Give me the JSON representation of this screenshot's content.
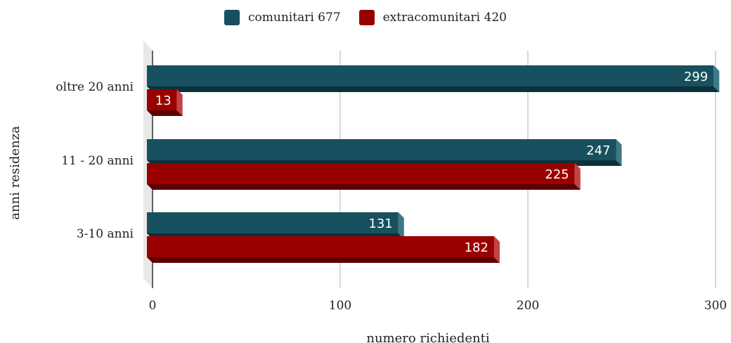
{
  "chart_data": {
    "type": "bar",
    "orientation": "horizontal",
    "style": "3d",
    "categories": [
      "oltre 20 anni",
      "11 - 20 anni",
      "3-10 anni"
    ],
    "series": [
      {
        "name": "comunitari 677",
        "values": [
          299,
          247,
          131
        ],
        "color": "#17505e"
      },
      {
        "name": "extracomunitari 420",
        "values": [
          13,
          225,
          182
        ],
        "color": "#990000"
      }
    ],
    "xlabel": "numero richiedenti",
    "ylabel": "anni residenza",
    "xlim": [
      0,
      300
    ],
    "xticks": [
      "0",
      "100",
      "200",
      "300"
    ],
    "grid": true,
    "legend": "top-center",
    "data_labels": true
  }
}
